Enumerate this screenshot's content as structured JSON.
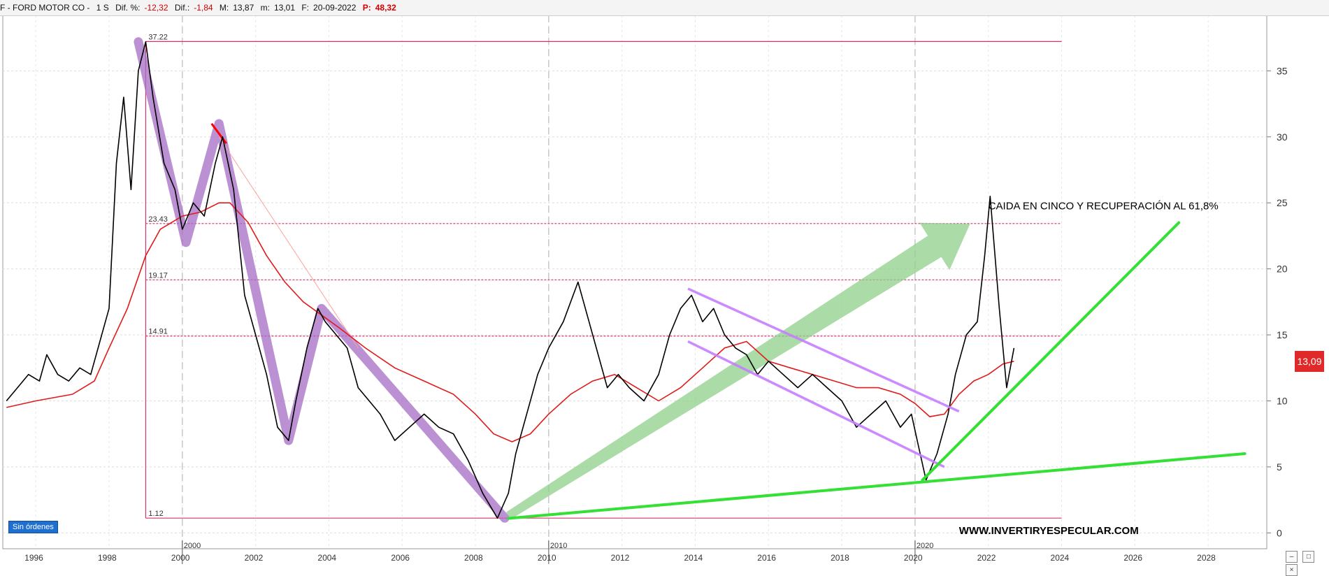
{
  "header": {
    "ticker": "F - FORD MOTOR CO -",
    "timeframe": "1 S",
    "dif_pct_label": "Dif. %:",
    "dif_pct_value": "-12,32",
    "dif_label": "Dif.:",
    "dif_value": "-1,84",
    "max_label": "M:",
    "max_value": "13,87",
    "min_label": "m:",
    "min_value": "13,01",
    "date_label": "F:",
    "date_value": "20-09-2022",
    "p_label": "P:",
    "p_value": "48,32"
  },
  "orders_badge": "Sin órdenes",
  "last_price": "13,09",
  "icons": [
    "minus-icon",
    "restore-icon",
    "close-icon"
  ],
  "colors": {
    "price": "#000000",
    "moving_average": "#e01b1b",
    "fib_levels": "#d6336c",
    "impulse_waves": "#a66cc6",
    "recovery_arrow": "#8fcf8a",
    "channel": "#c77dff",
    "support_lines": "#33e033",
    "annotation_red": "#ff0000",
    "price_badge": "#e02a2a"
  },
  "chart_data": {
    "type": "line",
    "title": "",
    "xlabel": "",
    "ylabel": "",
    "xlim": [
      1995.1,
      2029.6
    ],
    "ylim": [
      -1.2,
      39.2
    ],
    "grid": true,
    "x_ticks": [
      "1996",
      "1998",
      "2000",
      "2002",
      "2004",
      "2006",
      "2008",
      "2010",
      "2012",
      "2014",
      "2016",
      "2018",
      "2020",
      "2022",
      "2024",
      "2026",
      "2028"
    ],
    "x_tick_values": [
      1996,
      1998,
      2000,
      2002,
      2004,
      2006,
      2008,
      2010,
      2012,
      2014,
      2016,
      2018,
      2020,
      2022,
      2024,
      2026,
      2028
    ],
    "decade_labels": [
      "2000",
      "2010",
      "2020"
    ],
    "decade_values": [
      2000,
      2010,
      2020
    ],
    "y_ticks": [
      "0",
      "5",
      "10",
      "15",
      "20",
      "25",
      "30",
      "35"
    ],
    "y_tick_values": [
      0,
      5,
      10,
      15,
      20,
      25,
      30,
      35
    ],
    "series": [
      {
        "name": "",
        "x": [
          1995.2,
          1995.5,
          1995.8,
          1996.1,
          1996.3,
          1996.6,
          1996.9,
          1997.2,
          1997.5,
          1997.8,
          1998.0,
          1998.2,
          1998.4,
          1998.6,
          1998.8,
          1999.0,
          1999.2,
          1999.5,
          1999.8,
          2000.0,
          2000.3,
          2000.6,
          2000.9,
          2001.1,
          2001.4,
          2001.7,
          2002.0,
          2002.3,
          2002.6,
          2002.9,
          2003.1,
          2003.4,
          2003.7,
          2003.9,
          2004.2,
          2004.5,
          2004.8,
          2005.1,
          2005.4,
          2005.8,
          2006.2,
          2006.6,
          2007.0,
          2007.4,
          2007.8,
          2008.2,
          2008.6,
          2008.9,
          2009.1,
          2009.4,
          2009.7,
          2010.0,
          2010.4,
          2010.8,
          2011.0,
          2011.3,
          2011.6,
          2011.9,
          2012.2,
          2012.6,
          2013.0,
          2013.3,
          2013.6,
          2013.9,
          2014.2,
          2014.5,
          2014.8,
          2015.1,
          2015.4,
          2015.7,
          2016.0,
          2016.4,
          2016.8,
          2017.2,
          2017.6,
          2018.0,
          2018.4,
          2018.8,
          2019.2,
          2019.6,
          2019.9,
          2020.1,
          2020.3,
          2020.6,
          2020.9,
          2021.1,
          2021.4,
          2021.7,
          2021.9,
          2022.05,
          2022.3,
          2022.5,
          2022.7
        ],
        "y": [
          10.0,
          11.0,
          12.0,
          11.5,
          13.5,
          12.0,
          11.5,
          12.5,
          12.0,
          15.0,
          17.0,
          28.0,
          33.0,
          26.0,
          35.0,
          37.2,
          33.0,
          28.0,
          26.0,
          23.0,
          25.0,
          24.0,
          28.0,
          30.0,
          26.0,
          18.0,
          15.0,
          12.0,
          8.0,
          7.0,
          10.0,
          14.0,
          17.0,
          16.0,
          15.0,
          14.0,
          11.0,
          10.0,
          9.0,
          7.0,
          8.0,
          9.0,
          8.0,
          7.5,
          5.5,
          3.0,
          1.12,
          3.0,
          6.0,
          9.0,
          12.0,
          14.0,
          16.0,
          19.0,
          17.0,
          14.0,
          11.0,
          12.0,
          11.0,
          10.0,
          12.0,
          15.0,
          17.0,
          18.0,
          16.0,
          17.0,
          15.0,
          14.0,
          13.5,
          12.0,
          13.0,
          12.0,
          11.0,
          12.0,
          11.0,
          10.0,
          8.0,
          9.0,
          10.0,
          8.0,
          9.0,
          6.5,
          4.0,
          6.0,
          9.0,
          12.0,
          15.0,
          16.0,
          21.0,
          25.5,
          17.0,
          11.0,
          14.0
        ]
      },
      {
        "name": "",
        "x": [
          1995.2,
          1996.0,
          1997.0,
          1997.6,
          1998.0,
          1998.5,
          1999.0,
          1999.4,
          2000.0,
          2000.5,
          2001.0,
          2001.3,
          2001.8,
          2002.3,
          2002.8,
          2003.3,
          2003.8,
          2004.3,
          2005.0,
          2005.8,
          2006.6,
          2007.4,
          2008.0,
          2008.5,
          2009.0,
          2009.5,
          2010.0,
          2010.6,
          2011.2,
          2011.8,
          2012.4,
          2013.0,
          2013.6,
          2014.2,
          2014.8,
          2015.4,
          2016.0,
          2016.6,
          2017.2,
          2017.8,
          2018.4,
          2019.0,
          2019.6,
          2020.0,
          2020.4,
          2020.8,
          2021.2,
          2021.6,
          2022.0,
          2022.4,
          2022.7
        ],
        "y": [
          9.5,
          10.0,
          10.5,
          11.5,
          14.0,
          17.0,
          21.0,
          23.0,
          24.0,
          24.3,
          25.0,
          25.0,
          23.5,
          21.0,
          19.0,
          17.5,
          16.5,
          15.5,
          14.0,
          12.5,
          11.5,
          10.5,
          9.0,
          7.5,
          6.9,
          7.5,
          9.0,
          10.5,
          11.5,
          12.0,
          11.0,
          10.0,
          11.0,
          12.5,
          14.0,
          14.5,
          13.0,
          12.5,
          12.0,
          11.5,
          11.0,
          11.0,
          10.5,
          9.8,
          8.8,
          9.0,
          10.5,
          11.5,
          12.0,
          12.8,
          13.0
        ]
      }
    ],
    "fibonacci_levels": [
      {
        "label": "37.22",
        "value": 37.22
      },
      {
        "label": "23.43",
        "value": 23.43
      },
      {
        "label": "19.17",
        "value": 19.17
      },
      {
        "label": "14.91",
        "value": 14.91
      },
      {
        "label": "1.12",
        "value": 1.12
      }
    ],
    "impulse_waves": [
      [
        1998.8,
        37.2
      ],
      [
        2000.1,
        22.0
      ],
      [
        2001.0,
        31.0
      ],
      [
        2002.9,
        7.0
      ],
      [
        2003.8,
        17.0
      ],
      [
        2008.8,
        1.12
      ]
    ],
    "downtrend_line": [
      [
        2001.0,
        30.0
      ],
      [
        2004.8,
        14.0
      ]
    ],
    "red_mark": [
      [
        2000.8,
        31.0
      ],
      [
        2001.2,
        29.5
      ]
    ],
    "recovery_arrow": [
      [
        2008.9,
        1.3
      ],
      [
        2021.5,
        23.4
      ]
    ],
    "channel_upper": [
      [
        2013.8,
        18.5
      ],
      [
        2021.2,
        9.2
      ]
    ],
    "channel_lower": [
      [
        2013.8,
        14.5
      ],
      [
        2020.8,
        5.0
      ]
    ],
    "support_lines": [
      [
        [
          2008.9,
          1.1
        ],
        [
          2029.0,
          6.0
        ]
      ],
      [
        [
          2020.2,
          4.0
        ],
        [
          2027.2,
          23.5
        ]
      ]
    ],
    "annotations": [
      {
        "text": "CAIDA EN CINCO Y RECUPERACIÓN AL 61,8%",
        "x": 2022.0,
        "y": 24.5
      },
      {
        "text": "WWW.INVERTIRYESPECULAR.COM",
        "x": 2021.2,
        "y": -0.1
      }
    ]
  }
}
